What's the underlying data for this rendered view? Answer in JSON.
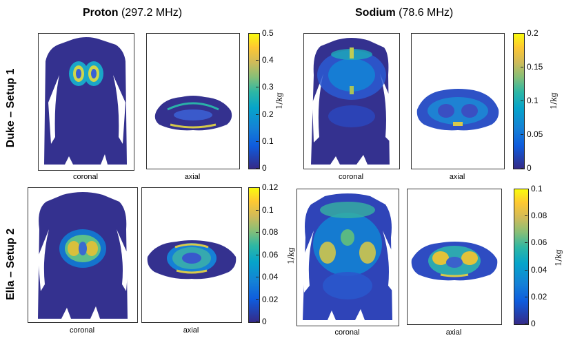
{
  "headers": {
    "proton_bold": "Proton",
    "proton_freq": "(297.2 MHz)",
    "sodium_bold": "Sodium",
    "sodium_freq": "(78.6 MHz)"
  },
  "rows": {
    "row1": "Duke – Setup 1",
    "row2": "Ella – Setup 2"
  },
  "captions": {
    "coronal": "coronal",
    "axial": "axial"
  },
  "unit_label": "1/kg",
  "chart_data": [
    {
      "type": "heatmap",
      "title": "Proton (297.2 MHz)",
      "subject": "Duke – Setup 1",
      "views": [
        "coronal",
        "axial"
      ],
      "colorbar": {
        "min": 0,
        "max": 0.5,
        "ticks": [
          "0",
          "0.1",
          "0.2",
          "0.3",
          "0.4",
          "0.5"
        ]
      },
      "unit": "1/kg"
    },
    {
      "type": "heatmap",
      "title": "Sodium (78.6 MHz)",
      "subject": "Duke – Setup 1",
      "views": [
        "coronal",
        "axial"
      ],
      "colorbar": {
        "min": 0,
        "max": 0.2,
        "ticks": [
          "0",
          "0.05",
          "0.1",
          "0.15",
          "0.2"
        ]
      },
      "unit": "1/kg"
    },
    {
      "type": "heatmap",
      "title": "Proton (297.2 MHz)",
      "subject": "Ella – Setup 2",
      "views": [
        "coronal",
        "axial"
      ],
      "colorbar": {
        "min": 0,
        "max": 0.12,
        "ticks": [
          "0",
          "0.02",
          "0.04",
          "0.06",
          "0.08",
          "0.1",
          "0.12"
        ]
      },
      "unit": "1/kg"
    },
    {
      "type": "heatmap",
      "title": "Sodium (78.6 MHz)",
      "subject": "Ella – Setup 2",
      "views": [
        "coronal",
        "axial"
      ],
      "colorbar": {
        "min": 0,
        "max": 0.1,
        "ticks": [
          "0",
          "0.02",
          "0.04",
          "0.06",
          "0.08",
          "0.1"
        ]
      },
      "unit": "1/kg"
    }
  ]
}
